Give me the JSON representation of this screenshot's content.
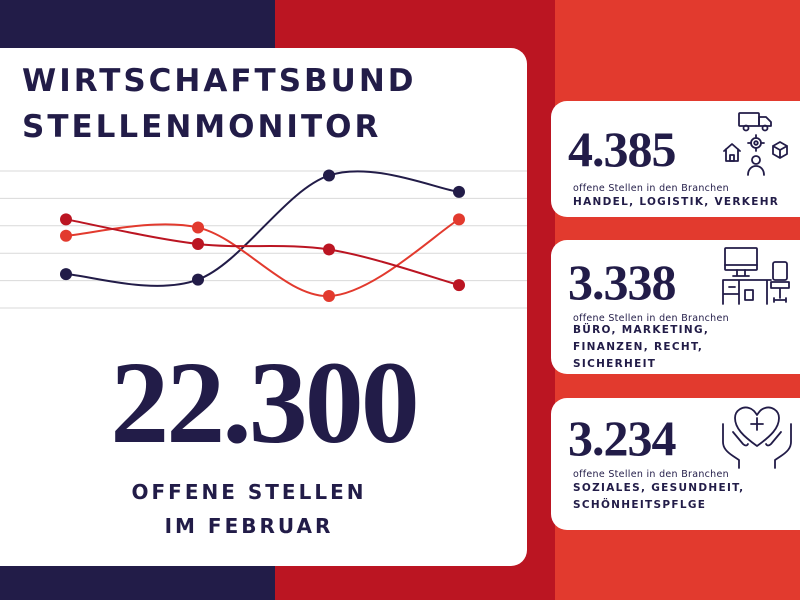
{
  "title": {
    "line1": "WIRTSCHAFTSBUND",
    "line2": "STELLENMONITOR"
  },
  "headline": {
    "value": "22.300",
    "label_line1": "OFFENE STELLEN",
    "label_line2": "IM FEBRUAR"
  },
  "colors": {
    "navy": "#221c48",
    "crimson": "#bb1522",
    "red": "#e23a2e",
    "white": "#ffffff",
    "gridline": "#d9d9d9"
  },
  "chart_data": {
    "type": "line",
    "x": [
      1,
      2,
      3,
      4
    ],
    "series": [
      {
        "color": "#221c48",
        "values": [
          1.2,
          1.0,
          4.8,
          4.2
        ]
      },
      {
        "color": "#e23a2e",
        "values": [
          2.6,
          2.9,
          0.4,
          3.2
        ]
      },
      {
        "color": "#bb1522",
        "values": [
          3.2,
          2.3,
          2.1,
          0.8
        ]
      }
    ],
    "ylim": [
      0,
      5
    ],
    "grid": true,
    "axes_visible": false
  },
  "stats": [
    {
      "value": "4.385",
      "desc": "offene Stellen in den Branchen",
      "branches": [
        "HANDEL, LOGISTIK, VERKEHR"
      ],
      "icon": "logistics-icon"
    },
    {
      "value": "3.338",
      "desc": "offene Stellen in den Branchen",
      "branches": [
        "BÜRO, MARKETING,",
        "FINANZEN, RECHT,",
        "SICHERHEIT"
      ],
      "icon": "office-desk-icon"
    },
    {
      "value": "3.234",
      "desc": "offene Stellen in den Branchen",
      "branches": [
        "SOZIALES, GESUNDHEIT,",
        "SCHÖNHEITSPFLGE"
      ],
      "icon": "healthcare-hands-heart-icon"
    }
  ]
}
